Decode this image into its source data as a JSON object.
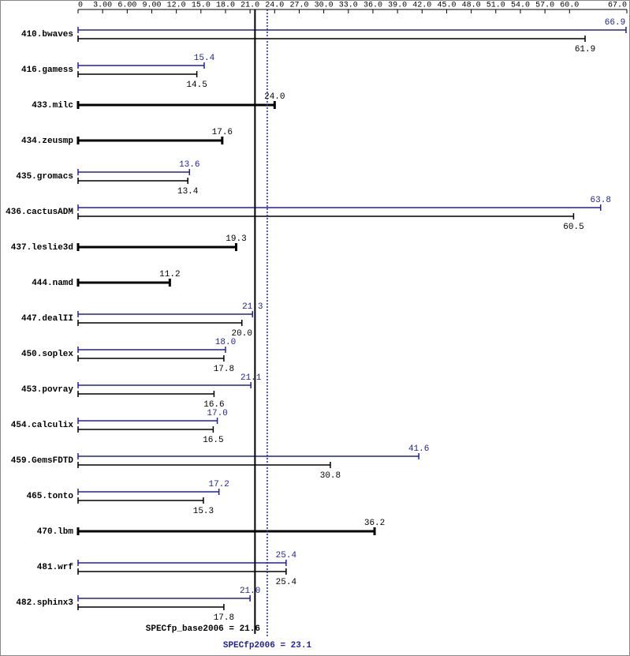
{
  "chart_data": {
    "type": "bar",
    "orientation": "horizontal",
    "categories": [
      "410.bwaves",
      "416.gamess",
      "433.milc",
      "434.zeusmp",
      "435.gromacs",
      "436.cactusADM",
      "437.leslie3d",
      "444.namd",
      "447.dealII",
      "450.soplex",
      "453.povray",
      "454.calculix",
      "459.GemsFDTD",
      "465.tonto",
      "470.lbm",
      "481.wrf",
      "482.sphinx3"
    ],
    "series": [
      {
        "color": "#22229a",
        "values": [
          66.9,
          15.4,
          null,
          null,
          13.6,
          63.8,
          null,
          null,
          21.3,
          18.0,
          21.1,
          17.0,
          41.6,
          17.2,
          null,
          25.4,
          21.0
        ],
        "value_labels": [
          "66.9",
          "15.4",
          null,
          null,
          "13.6",
          "63.8",
          null,
          null,
          "21.3",
          "18.0",
          "21.1",
          "17.0",
          "41.6",
          "17.2",
          null,
          "25.4",
          "21.0"
        ]
      },
      {
        "color": "#000000",
        "values": [
          61.9,
          14.5,
          24.0,
          17.6,
          13.4,
          60.5,
          19.3,
          11.2,
          20.0,
          17.8,
          16.6,
          16.5,
          30.8,
          15.3,
          36.2,
          25.4,
          17.8
        ],
        "value_labels": [
          "61.9",
          "14.5",
          "24.0",
          "17.6",
          "13.4",
          "60.5",
          "19.3",
          "11.2",
          "20.0",
          "17.8",
          "16.6",
          "16.5",
          "30.8",
          "15.3",
          "36.2",
          "25.4",
          "17.8"
        ]
      }
    ],
    "xlim": [
      0,
      67.0
    ],
    "xticks": [
      0,
      {
        "value": 3,
        "label": "3.00"
      },
      {
        "value": 6,
        "label": "6.00"
      },
      {
        "value": 9,
        "label": "9.00"
      },
      {
        "value": 12,
        "label": "12.0"
      },
      {
        "value": 15,
        "label": "15.0"
      },
      {
        "value": 18,
        "label": "18.0"
      },
      {
        "value": 21,
        "label": "21.0"
      },
      {
        "value": 24,
        "label": "24.0"
      },
      {
        "value": 27,
        "label": "27.0"
      },
      {
        "value": 30,
        "label": "30.0"
      },
      {
        "value": 33,
        "label": "33.0"
      },
      {
        "value": 36,
        "label": "36.0"
      },
      {
        "value": 39,
        "label": "39.0"
      },
      {
        "value": 42,
        "label": "42.0"
      },
      {
        "value": 45,
        "label": "45.0"
      },
      {
        "value": 48,
        "label": "48.0"
      },
      {
        "value": 51,
        "label": "51.0"
      },
      {
        "value": 54,
        "label": "54.0"
      },
      {
        "value": 57,
        "label": "57.0"
      },
      {
        "value": 60,
        "label": "60.0"
      },
      {
        "value": 67,
        "label": "67.0"
      }
    ],
    "reference_lines": [
      {
        "label": "SPECfp_base2006 = 21.6",
        "value": 21.6,
        "color": "#000000",
        "style": "solid"
      },
      {
        "label": "SPECfp2006 = 23.1",
        "value": 23.1,
        "color": "#22229a",
        "style": "dotted"
      }
    ]
  }
}
